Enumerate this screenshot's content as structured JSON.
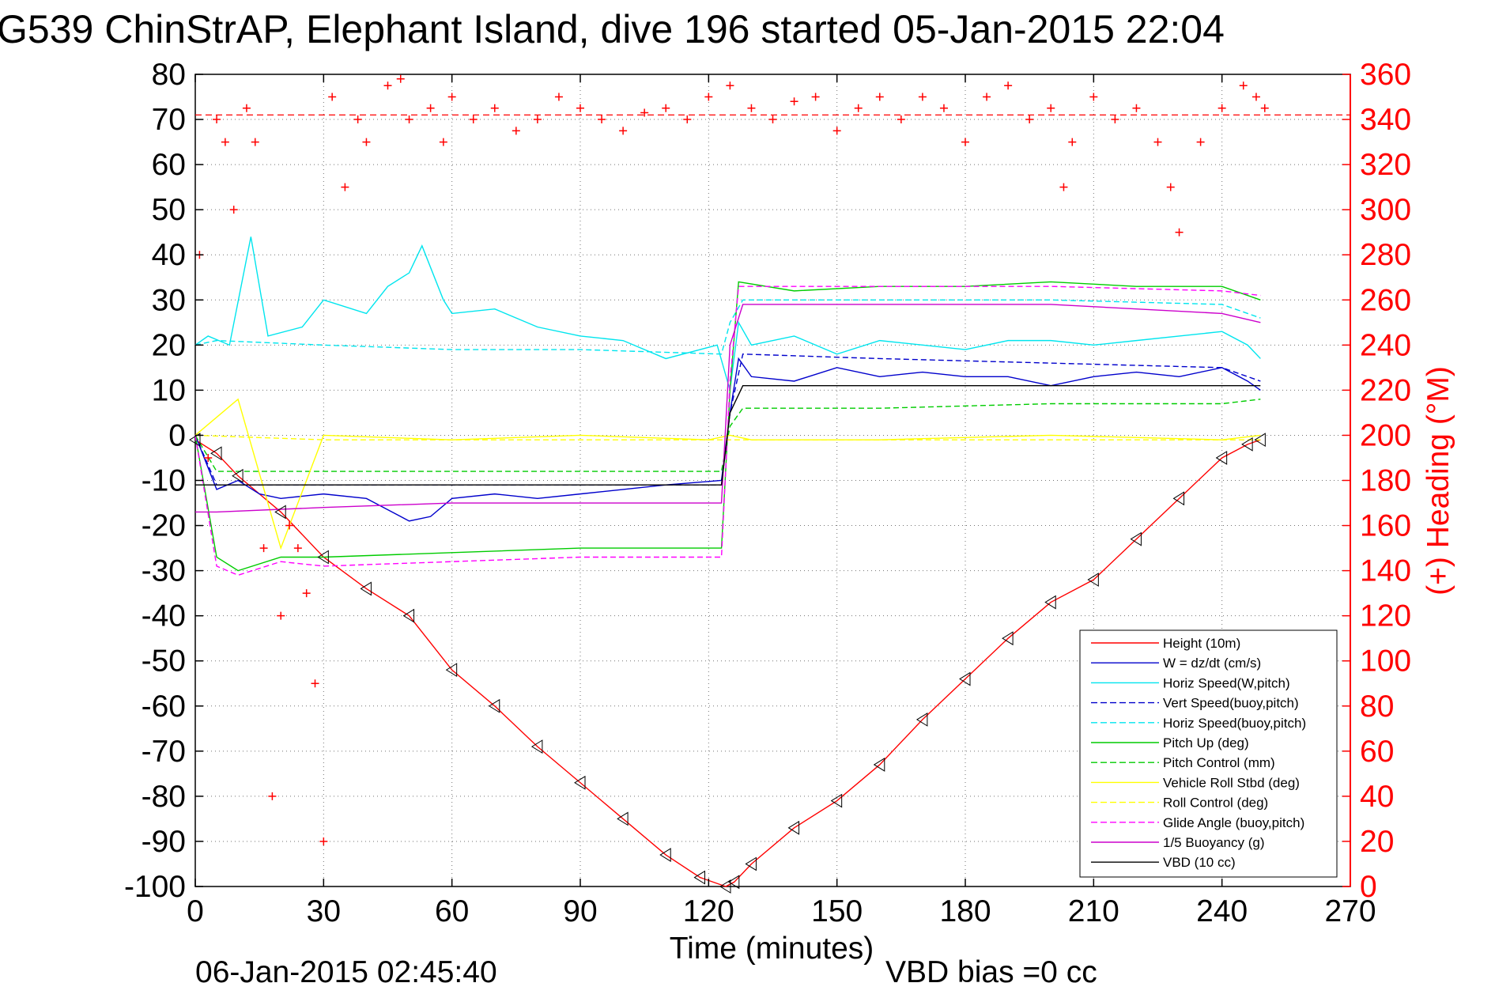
{
  "title": "G539 ChinStrAP, Elephant Island, dive 196 started 05-Jan-2015 22:04",
  "footer_left": "06-Jan-2015 02:45:40",
  "footer_right": "VBD bias =0 cc",
  "colors": {
    "height": "#ff0000",
    "w": "#0000cc",
    "horiz_w": "#00e5ee",
    "vert_buoy": "#0000cc",
    "horiz_buoy": "#00e5ee",
    "pitch_up": "#00cc00",
    "pitch_control": "#00cc00",
    "roll": "#ffff00",
    "roll_control": "#ffff00",
    "glide": "#ff00ff",
    "buoyancy": "#cc00cc",
    "vbd": "#000000",
    "heading": "#ff0000"
  },
  "chart_data": {
    "type": "line",
    "title": "G539 ChinStrAP, Elephant Island, dive 196 started 05-Jan-2015 22:04",
    "xlabel": "Time (minutes)",
    "ylabel": "",
    "ylabel_right": "(+) Heading (°M)",
    "xlim": [
      0,
      270
    ],
    "ylim": [
      -100,
      80
    ],
    "ylim_right": [
      0,
      360
    ],
    "x_ticks": [
      "0",
      "30",
      "60",
      "90",
      "120",
      "150",
      "180",
      "210",
      "240",
      "270"
    ],
    "y_ticks": [
      "80",
      "70",
      "60",
      "50",
      "40",
      "30",
      "20",
      "10",
      "0",
      "-10",
      "-20",
      "-30",
      "-40",
      "-50",
      "-60",
      "-70",
      "-80",
      "-90",
      "-100"
    ],
    "y_ticks_right": [
      "360",
      "340",
      "320",
      "300",
      "280",
      "260",
      "240",
      "220",
      "200",
      "180",
      "160",
      "140",
      "120",
      "100",
      "80",
      "60",
      "40",
      "20",
      "0"
    ],
    "grid": true,
    "legend_position": "bottom-right",
    "legend": [
      {
        "label": "Height (10m)",
        "style": "solid",
        "color": "#ff0000"
      },
      {
        "label": "W = dz/dt (cm/s)",
        "style": "solid",
        "color": "#0000cc"
      },
      {
        "label": "Horiz Speed(W,pitch)",
        "style": "solid",
        "color": "#00e5ee"
      },
      {
        "label": "Vert Speed(buoy,pitch)",
        "style": "dashed",
        "color": "#0000cc"
      },
      {
        "label": "Horiz Speed(buoy,pitch)",
        "style": "dashed",
        "color": "#00e5ee"
      },
      {
        "label": "Pitch Up (deg)",
        "style": "solid",
        "color": "#00cc00"
      },
      {
        "label": "Pitch Control (mm)",
        "style": "dashed",
        "color": "#00cc00"
      },
      {
        "label": "Vehicle Roll Stbd (deg)",
        "style": "solid",
        "color": "#ffff00"
      },
      {
        "label": "Roll Control (deg)",
        "style": "dashed",
        "color": "#ffff00"
      },
      {
        "label": "Glide Angle (buoy,pitch)",
        "style": "dashed",
        "color": "#ff00ff"
      },
      {
        "label": "1/5 Buoyancy (g)",
        "style": "solid",
        "color": "#cc00cc"
      },
      {
        "label": "VBD (10 cc)",
        "style": "solid",
        "color": "#000000"
      }
    ],
    "heading_target": 342,
    "series": [
      {
        "name": "Height (10m)",
        "color": "#ff0000",
        "style": "solid",
        "x": [
          0,
          5,
          10,
          20,
          30,
          40,
          50,
          60,
          70,
          80,
          90,
          100,
          110,
          118,
          124,
          126,
          130,
          140,
          150,
          160,
          170,
          180,
          190,
          200,
          210,
          220,
          230,
          240,
          246,
          249
        ],
        "y": [
          -1,
          -4,
          -9,
          -17,
          -27,
          -34,
          -40,
          -52,
          -60,
          -69,
          -77,
          -85,
          -93,
          -98,
          -100,
          -99,
          -95,
          -87,
          -81,
          -73,
          -63,
          -54,
          -45,
          -37,
          -32,
          -23,
          -14,
          -5,
          -2,
          -1
        ]
      },
      {
        "name": "W = dz/dt (cm/s)",
        "color": "#0000cc",
        "style": "solid",
        "x": [
          0,
          5,
          10,
          15,
          20,
          30,
          40,
          50,
          55,
          60,
          70,
          80,
          90,
          100,
          110,
          123,
          125,
          127,
          130,
          140,
          150,
          160,
          170,
          180,
          190,
          200,
          210,
          220,
          230,
          240,
          246,
          249
        ],
        "y": [
          0,
          -12,
          -10,
          -13,
          -14,
          -13,
          -14,
          -19,
          -18,
          -14,
          -13,
          -14,
          -13,
          -12,
          -11,
          -10,
          5,
          17,
          13,
          12,
          15,
          13,
          14,
          13,
          13,
          11,
          13,
          14,
          13,
          15,
          12,
          10
        ]
      },
      {
        "name": "Horiz Speed(W,pitch)",
        "color": "#00e5ee",
        "style": "solid",
        "x": [
          0,
          3,
          8,
          13,
          17,
          25,
          30,
          40,
          45,
          50,
          53,
          58,
          60,
          70,
          80,
          90,
          100,
          110,
          122,
          125,
          127,
          130,
          140,
          150,
          160,
          170,
          180,
          190,
          200,
          210,
          220,
          230,
          240,
          246,
          249
        ],
        "y": [
          20,
          22,
          20,
          44,
          22,
          24,
          30,
          27,
          33,
          36,
          42,
          30,
          27,
          28,
          24,
          22,
          21,
          17,
          20,
          10,
          25,
          20,
          22,
          18,
          21,
          20,
          19,
          21,
          21,
          20,
          21,
          22,
          23,
          20,
          17
        ]
      },
      {
        "name": "Vert Speed(buoy,pitch)",
        "color": "#0000cc",
        "style": "dashed",
        "x": [
          0,
          5,
          30,
          60,
          90,
          123,
          125,
          128,
          160,
          200,
          240,
          249
        ],
        "y": [
          0,
          -11,
          -11,
          -11,
          -11,
          -11,
          5,
          18,
          17,
          16,
          15,
          12
        ]
      },
      {
        "name": "Horiz Speed(buoy,pitch)",
        "color": "#00e5ee",
        "style": "dashed",
        "x": [
          0,
          5,
          30,
          60,
          90,
          123,
          125,
          128,
          160,
          200,
          240,
          249
        ],
        "y": [
          20,
          21,
          20,
          19,
          19,
          18,
          25,
          30,
          30,
          30,
          29,
          26
        ]
      },
      {
        "name": "Pitch Up (deg)",
        "color": "#00cc00",
        "style": "solid",
        "x": [
          0,
          5,
          10,
          20,
          30,
          60,
          90,
          123,
          125,
          127,
          140,
          160,
          180,
          200,
          220,
          240,
          249
        ],
        "y": [
          0,
          -27,
          -30,
          -27,
          -27,
          -26,
          -25,
          -25,
          10,
          34,
          32,
          33,
          33,
          34,
          33,
          33,
          30
        ]
      },
      {
        "name": "Pitch Control (mm)",
        "color": "#00cc00",
        "style": "dashed",
        "x": [
          0,
          5,
          30,
          60,
          90,
          123,
          125,
          128,
          160,
          200,
          240,
          249
        ],
        "y": [
          0,
          -8,
          -8,
          -8,
          -8,
          -8,
          2,
          6,
          6,
          7,
          7,
          8
        ]
      },
      {
        "name": "Vehicle Roll Stbd (deg)",
        "color": "#ffff00",
        "style": "solid",
        "x": [
          0,
          10,
          20,
          30,
          60,
          90,
          120,
          125,
          130,
          160,
          200,
          240,
          249
        ],
        "y": [
          0,
          8,
          -25,
          0,
          -1,
          0,
          -1,
          0,
          -1,
          -1,
          0,
          -1,
          0
        ]
      },
      {
        "name": "Roll Control (deg)",
        "color": "#ffff00",
        "style": "dashed",
        "x": [
          0,
          30,
          60,
          120,
          125,
          200,
          249
        ],
        "y": [
          0,
          -1,
          -1,
          -1,
          -1,
          -1,
          -1
        ]
      },
      {
        "name": "Glide Angle (buoy,pitch)",
        "color": "#ff00ff",
        "style": "dashed",
        "x": [
          0,
          5,
          10,
          20,
          30,
          60,
          90,
          123,
          125,
          127,
          160,
          200,
          240,
          249
        ],
        "y": [
          0,
          -29,
          -31,
          -28,
          -29,
          -28,
          -27,
          -27,
          12,
          33,
          33,
          33,
          32,
          31
        ]
      },
      {
        "name": "1/5 Buoyancy (g)",
        "color": "#cc00cc",
        "style": "solid",
        "x": [
          0,
          5,
          30,
          60,
          90,
          123,
          125,
          128,
          160,
          200,
          240,
          249
        ],
        "y": [
          -17,
          -17,
          -16,
          -15,
          -15,
          -15,
          20,
          29,
          29,
          29,
          27,
          25
        ]
      },
      {
        "name": "VBD (10 cc)",
        "color": "#000000",
        "style": "solid",
        "x": [
          0,
          5,
          30,
          60,
          90,
          123,
          125,
          128,
          160,
          200,
          240,
          249
        ],
        "y": [
          -11,
          -11,
          -11,
          -11,
          -11,
          -11,
          5,
          11,
          11,
          11,
          11,
          11
        ]
      }
    ],
    "heading_points": {
      "name": "(+) Heading (°M)",
      "color": "#ff0000",
      "x": [
        1,
        3,
        5,
        7,
        9,
        12,
        14,
        16,
        18,
        20,
        22,
        24,
        26,
        28,
        30,
        32,
        35,
        38,
        40,
        45,
        48,
        50,
        55,
        58,
        60,
        65,
        70,
        75,
        80,
        85,
        90,
        95,
        100,
        105,
        110,
        115,
        120,
        125,
        130,
        135,
        140,
        145,
        150,
        155,
        160,
        165,
        170,
        175,
        180,
        185,
        190,
        195,
        200,
        203,
        205,
        210,
        215,
        220,
        225,
        228,
        230,
        235,
        240,
        245,
        248,
        250
      ],
      "y": [
        280,
        190,
        340,
        330,
        300,
        345,
        330,
        150,
        40,
        120,
        160,
        150,
        130,
        90,
        20,
        350,
        310,
        340,
        330,
        355,
        358,
        340,
        345,
        330,
        350,
        340,
        345,
        335,
        340,
        350,
        345,
        340,
        335,
        343,
        345,
        340,
        350,
        355,
        345,
        340,
        348,
        350,
        335,
        345,
        350,
        340,
        350,
        345,
        330,
        350,
        355,
        340,
        345,
        310,
        330,
        350,
        340,
        345,
        330,
        310,
        290,
        330,
        345,
        355,
        350,
        345
      ]
    }
  }
}
